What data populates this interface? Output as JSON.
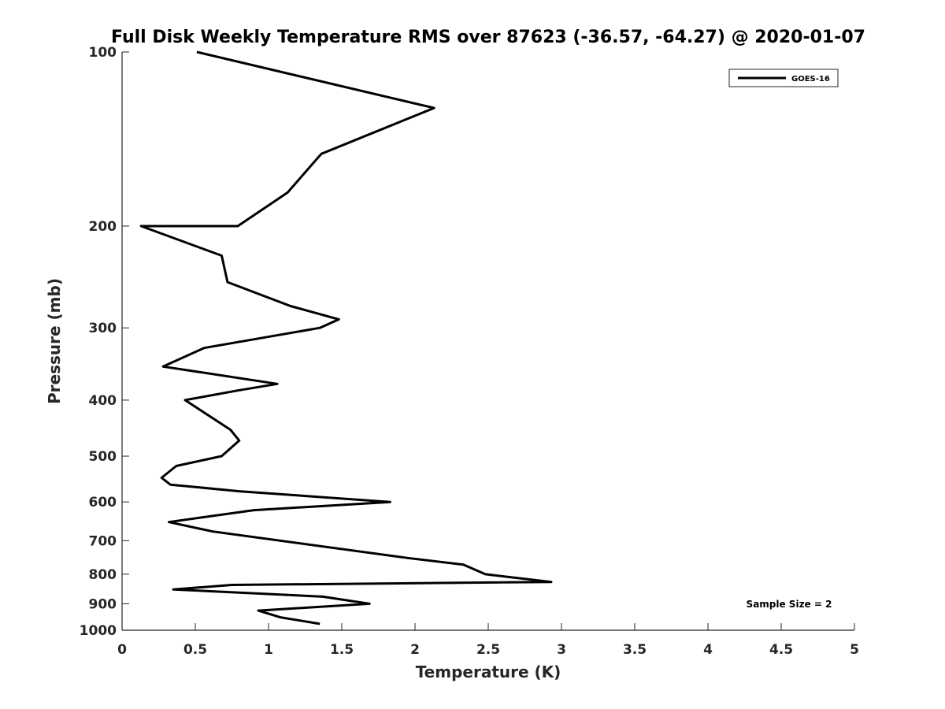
{
  "chart_data": {
    "type": "line",
    "title": "Full Disk Weekly Temperature RMS over 87623 (-36.57, -64.27) @ 2020-01-07",
    "xlabel": "Temperature (K)",
    "ylabel": "Pressure (mb)",
    "xlim": [
      0,
      5
    ],
    "ylim": [
      100,
      1000
    ],
    "y_scale": "log",
    "y_reversed": true,
    "x_ticks": [
      0,
      0.5,
      1,
      1.5,
      2,
      2.5,
      3,
      3.5,
      4,
      4.5,
      5
    ],
    "x_tick_labels": [
      "0",
      "0.5",
      "1",
      "1.5",
      "2",
      "2.5",
      "3",
      "3.5",
      "4",
      "4.5",
      "5"
    ],
    "y_ticks": [
      100,
      200,
      300,
      400,
      500,
      600,
      700,
      800,
      900,
      1000
    ],
    "y_tick_labels": [
      "100",
      "200",
      "300",
      "400",
      "500",
      "600",
      "700",
      "800",
      "900",
      "1000"
    ],
    "grid": false,
    "legend_position": "top-right",
    "series": [
      {
        "name": "GOES-16",
        "color": "#000000",
        "points": [
          {
            "x": 0.51,
            "y": 100
          },
          {
            "x": 2.13,
            "y": 125
          },
          {
            "x": 1.36,
            "y": 150
          },
          {
            "x": 1.13,
            "y": 175
          },
          {
            "x": 0.79,
            "y": 200,
            "note": ""
          },
          {
            "x": 0.13,
            "y": 200
          },
          {
            "x": 0.68,
            "y": 225
          },
          {
            "x": 0.72,
            "y": 250
          },
          {
            "x": 1.15,
            "y": 275
          },
          {
            "x": 1.48,
            "y": 290
          },
          {
            "x": 1.35,
            "y": 300
          },
          {
            "x": 0.56,
            "y": 325
          },
          {
            "x": 0.28,
            "y": 350
          },
          {
            "x": 1.06,
            "y": 375
          },
          {
            "x": 0.79,
            "y": 385
          },
          {
            "x": 0.43,
            "y": 400
          },
          {
            "x": 0.74,
            "y": 450
          },
          {
            "x": 0.8,
            "y": 470
          },
          {
            "x": 0.68,
            "y": 500
          },
          {
            "x": 0.37,
            "y": 520
          },
          {
            "x": 0.27,
            "y": 545
          },
          {
            "x": 0.33,
            "y": 560
          },
          {
            "x": 0.8,
            "y": 575
          },
          {
            "x": 1.83,
            "y": 600
          },
          {
            "x": 0.9,
            "y": 620
          },
          {
            "x": 0.32,
            "y": 650
          },
          {
            "x": 0.62,
            "y": 675
          },
          {
            "x": 1.95,
            "y": 750
          },
          {
            "x": 2.33,
            "y": 770
          },
          {
            "x": 2.48,
            "y": 800
          },
          {
            "x": 2.93,
            "y": 825
          },
          {
            "x": 0.75,
            "y": 835
          },
          {
            "x": 0.35,
            "y": 850
          },
          {
            "x": 1.37,
            "y": 875
          },
          {
            "x": 1.69,
            "y": 900
          },
          {
            "x": 0.93,
            "y": 925
          },
          {
            "x": 1.08,
            "y": 950
          },
          {
            "x": 1.35,
            "y": 975
          }
        ]
      }
    ],
    "legend": [
      "GOES-16"
    ],
    "annotations": [
      "Sample Size = 2"
    ]
  }
}
